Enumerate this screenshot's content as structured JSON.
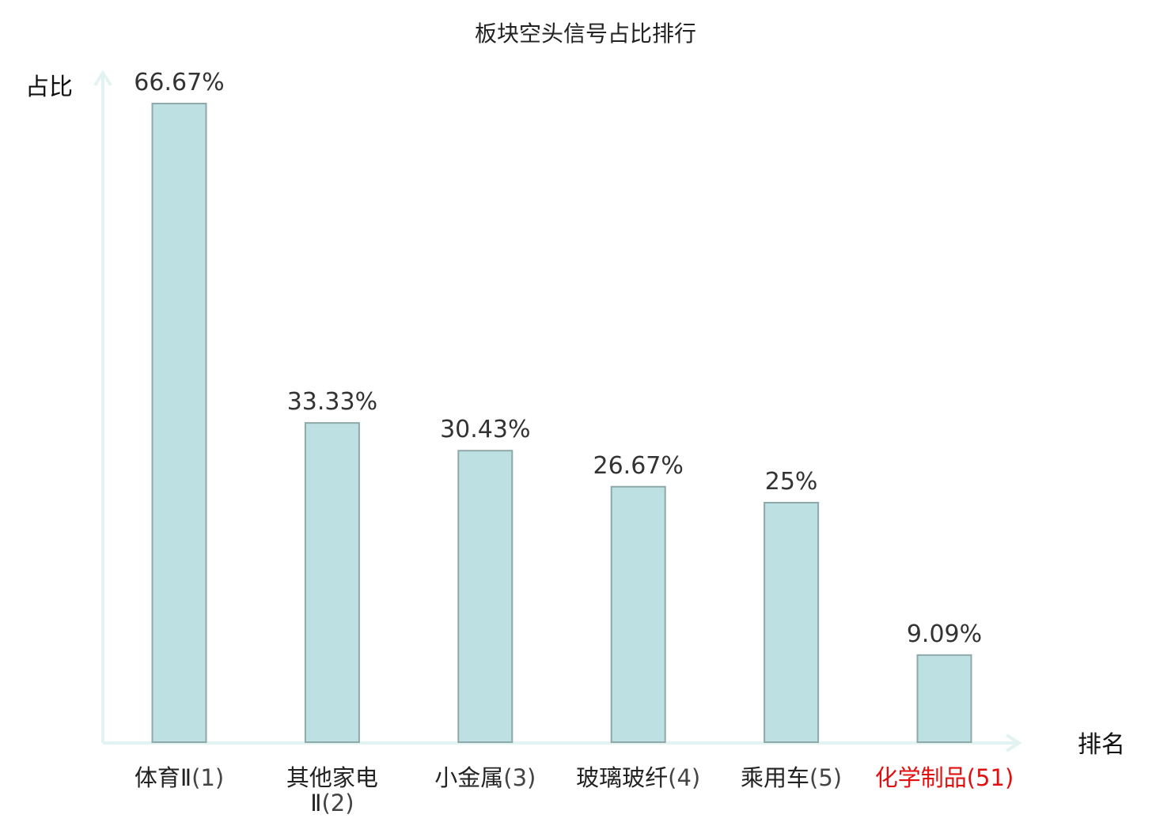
{
  "chart_data": {
    "type": "bar",
    "title": "板块空头信号占比排行",
    "ylabel": "占比",
    "xlabel": "排名",
    "ylim": [
      0,
      70
    ],
    "grid": false,
    "categories": [
      {
        "lines": [
          "体育Ⅱ"
        ],
        "rank": "(1)",
        "highlight": false
      },
      {
        "lines": [
          "其他家电",
          "Ⅱ"
        ],
        "rank": "(2)",
        "highlight": false
      },
      {
        "lines": [
          "小金属"
        ],
        "rank": "(3)",
        "highlight": false
      },
      {
        "lines": [
          "玻璃玻纤"
        ],
        "rank": "(4)",
        "highlight": false
      },
      {
        "lines": [
          "乘用车"
        ],
        "rank": "(5)",
        "highlight": false
      },
      {
        "lines": [
          "化学制品"
        ],
        "rank": "(51)",
        "highlight": true
      }
    ],
    "values": [
      66.67,
      33.33,
      30.43,
      26.67,
      25,
      9.09
    ],
    "value_labels": [
      "66.67%",
      "33.33%",
      "30.43%",
      "26.67%",
      "25%",
      "9.09%"
    ],
    "colors": {
      "bar_fill": "#bde0e2",
      "bar_stroke": "#8fa9aa",
      "axis": "#e3f3f1",
      "highlight_text": "#e01010",
      "normal_text": "#222222"
    }
  }
}
